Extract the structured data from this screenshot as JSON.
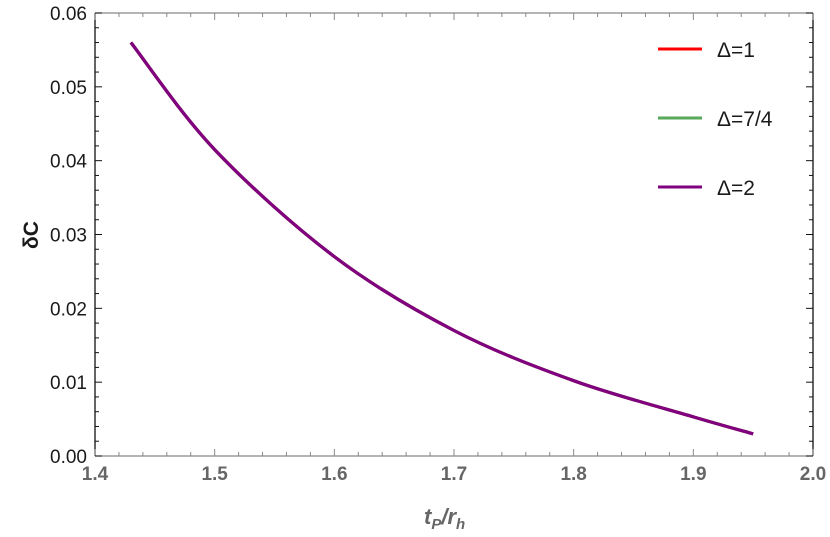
{
  "chart_data": {
    "type": "line",
    "title": "",
    "xlabel": "t_P/r_h",
    "xlabel_main": "t",
    "xlabel_sub1": "P",
    "xlabel_slash": "/r",
    "xlabel_sub2": "h",
    "ylabel": "δC",
    "xlim": [
      1.4,
      2.0
    ],
    "ylim": [
      0.0,
      0.06
    ],
    "xticks": [
      "1.4",
      "1.5",
      "1.6",
      "1.7",
      "1.8",
      "1.9",
      "2.0"
    ],
    "yticks": [
      "0.00",
      "0.01",
      "0.02",
      "0.03",
      "0.04",
      "0.05",
      "0.06"
    ],
    "grid": false,
    "legend_position": "upper right",
    "series": [
      {
        "name": "Δ=1",
        "color": "#ff0000",
        "x": [
          1.43,
          1.5,
          1.6,
          1.7,
          1.8,
          1.9,
          1.95
        ],
        "values": [
          0.056,
          0.0415,
          0.027,
          0.017,
          0.0102,
          0.0053,
          0.003
        ]
      },
      {
        "name": "Δ=7/4",
        "color": "#5aa85a",
        "x": [
          1.43,
          1.5,
          1.6,
          1.7,
          1.8,
          1.9,
          1.95
        ],
        "values": [
          0.056,
          0.0415,
          0.027,
          0.017,
          0.0102,
          0.0053,
          0.003
        ]
      },
      {
        "name": "Δ=2",
        "color": "#800080",
        "x": [
          1.43,
          1.5,
          1.6,
          1.7,
          1.8,
          1.9,
          1.95
        ],
        "values": [
          0.056,
          0.0415,
          0.027,
          0.017,
          0.0102,
          0.0053,
          0.003
        ]
      }
    ]
  }
}
